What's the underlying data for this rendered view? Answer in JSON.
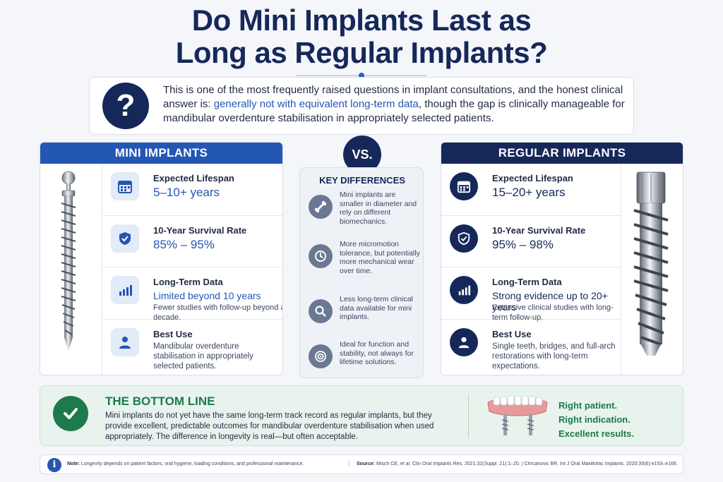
{
  "title": {
    "line1": "Do Mini Implants Last as",
    "line2": "Long as Regular Implants?"
  },
  "intro": {
    "icon": "question-mark-icon",
    "part1": "This is one of the most frequently raised questions in implant consultations, and the honest clinical answer is: ",
    "highlight": "generally not with equivalent long-term data",
    "part2": ", though the gap is clinically manageable for mandibular overdenture stabilisation in appropriately selected patients."
  },
  "vs_label": "VS.",
  "mini": {
    "heading": "MINI IMPLANTS",
    "rows": [
      {
        "icon": "calendar-icon",
        "label": "Expected Lifespan",
        "value": "5–10+ years"
      },
      {
        "icon": "shield-check-icon",
        "label": "10-Year Survival Rate",
        "value": "85% – 95%"
      },
      {
        "icon": "bar-chart-icon",
        "label": "Long-Term Data",
        "value": "Limited beyond 10 years",
        "sub": "Fewer studies with follow-up beyond a decade."
      },
      {
        "icon": "user-icon",
        "label": "Best Use",
        "body": "Mandibular overdenture stabilisation in appropriately selected patients."
      }
    ]
  },
  "regular": {
    "heading": "REGULAR IMPLANTS",
    "rows": [
      {
        "icon": "calendar-icon",
        "label": "Expected Lifespan",
        "value": "15–20+ years"
      },
      {
        "icon": "shield-check-icon",
        "label": "10-Year Survival Rate",
        "value": "95% – 98%"
      },
      {
        "icon": "bar-chart-icon",
        "label": "Long-Term Data",
        "value": "Strong evidence up to 20+ years",
        "sub": "Extensive clinical studies with long-term follow-up."
      },
      {
        "icon": "user-icon",
        "label": "Best Use",
        "body": "Single teeth, bridges, and full-arch restorations with long-term expectations."
      }
    ]
  },
  "key_differences": {
    "title": "KEY DIFFERENCES",
    "items": [
      {
        "icon": "bone-icon",
        "text": "Mini implants are smaller in diameter and rely on different biomechanics."
      },
      {
        "icon": "clock-icon",
        "text": "More micromotion tolerance, but potentially more mechanical wear over time."
      },
      {
        "icon": "magnifier-icon",
        "text": "Less long-term clinical data available for mini implants."
      },
      {
        "icon": "target-icon",
        "text": "Ideal for function and stability, not always for lifetime solutions."
      }
    ]
  },
  "bottom_line": {
    "title": "THE BOTTOM LINE",
    "text": "Mini implants do not yet have the same long-term track record as regular implants, but they provide excellent, predictable outcomes for mandibular overdenture stabilisation when used appropriately. The difference in longevity is real—but often acceptable.",
    "tags": [
      "Right patient.",
      "Right indication.",
      "Excellent results."
    ]
  },
  "footer": {
    "note_label": "Note:",
    "note": " Longevity depends on patient factors, oral hygiene, loading conditions, and professional maintenance.",
    "separator": "|",
    "source_label": "Source:",
    "source": " Misch CE, et al. Clin Oral Implants Res. 2021;32(Suppl. 21):1–20. | Chrcanovic BR. Int J Oral Maxillofac Implants. 2020;35(6):e153–e166."
  },
  "colors": {
    "navy": "#16285a",
    "blue": "#2456b3",
    "green": "#1c7a4c",
    "panel_bg": "#ffffff",
    "page_bg": "#f4f6f9"
  }
}
